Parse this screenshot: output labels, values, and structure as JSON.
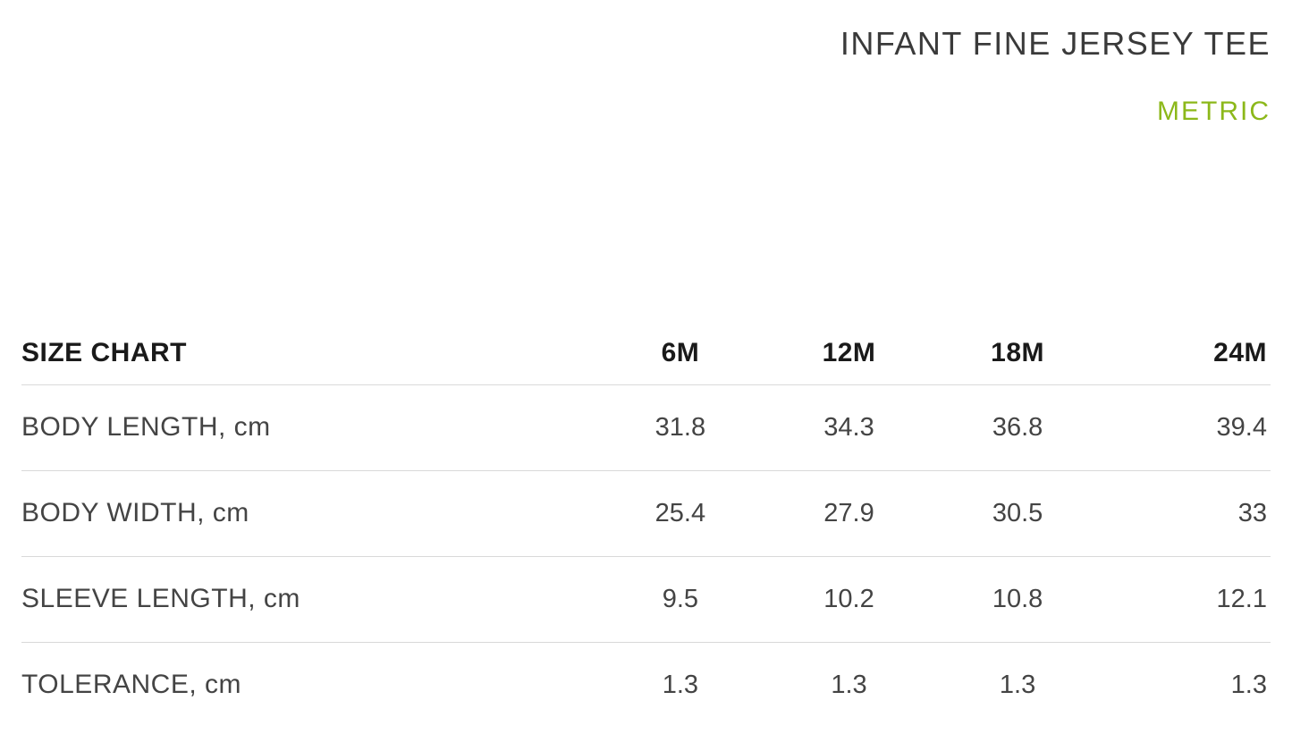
{
  "header": {
    "title": "INFANT FINE JERSEY TEE",
    "unit_label": "METRIC",
    "unit_color": "#8cb81a",
    "title_color": "#3a3a3a"
  },
  "table": {
    "heading": "SIZE CHART",
    "columns": [
      "6M",
      "12M",
      "18M",
      "24M"
    ],
    "rows": [
      {
        "label": "BODY LENGTH, cm",
        "values": [
          "31.8",
          "34.3",
          "36.8",
          "39.4"
        ]
      },
      {
        "label": "BODY WIDTH, cm",
        "values": [
          "25.4",
          "27.9",
          "30.5",
          "33"
        ]
      },
      {
        "label": "SLEEVE LENGTH, cm",
        "values": [
          "9.5",
          "10.2",
          "10.8",
          "12.1"
        ]
      },
      {
        "label": "TOLERANCE, cm",
        "values": [
          "1.3",
          "1.3",
          "1.3",
          "1.3"
        ]
      }
    ],
    "border_color": "#d9d9d9",
    "header_text_color": "#1a1a1a",
    "body_text_color": "#444444",
    "background_color": "#ffffff"
  }
}
